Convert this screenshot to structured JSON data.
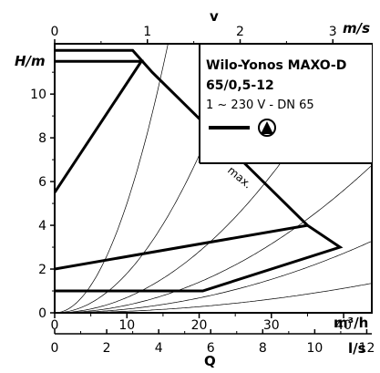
{
  "chart_data": {
    "type": "line",
    "title": "Wilo-Yonos MAXO-D",
    "subtitle": "65/0,5-12",
    "spec": "1 ~ 230 V - DN 65",
    "legend_symbol": "pump-symbol-icon",
    "legend_position": "top-right",
    "x_axis": {
      "label": "Q",
      "unit": "m³/h",
      "range": [
        0,
        43.9
      ],
      "ticks": [
        0,
        10,
        20,
        30,
        40
      ],
      "minor_ticks": [
        5,
        15,
        25,
        35
      ]
    },
    "x_axis_ls": {
      "unit": "l/s",
      "ticks": [
        0,
        2,
        4,
        6,
        8,
        10,
        12
      ]
    },
    "x_axis_velocity": {
      "label": "v",
      "unit": "m/s",
      "ticks": [
        0,
        1,
        2,
        3
      ]
    },
    "y_axis": {
      "label": "H/m",
      "range": [
        0,
        12.3
      ],
      "ticks": [
        0,
        2,
        4,
        6,
        8,
        10
      ],
      "minor_ticks": [
        1,
        3,
        5,
        7,
        9,
        11
      ]
    },
    "series": [
      {
        "name": "max.",
        "style": "thick",
        "points": [
          [
            0,
            12
          ],
          [
            10.8,
            12
          ],
          [
            13.5,
            11
          ],
          [
            35,
            4
          ],
          [
            39.5,
            3
          ],
          [
            20.5,
            1
          ],
          [
            0,
            1
          ]
        ]
      },
      {
        "style": "thick",
        "points": [
          [
            0,
            11.5
          ],
          [
            12,
            11.5
          ],
          [
            0,
            5.5
          ]
        ]
      },
      {
        "style": "thick",
        "points": [
          [
            0,
            2
          ],
          [
            35,
            4
          ]
        ]
      }
    ],
    "system_curves": {
      "style": "thin",
      "coefficients": [
        0.0007,
        0.0017,
        0.0035,
        0.007,
        0.018,
        0.05
      ]
    }
  }
}
